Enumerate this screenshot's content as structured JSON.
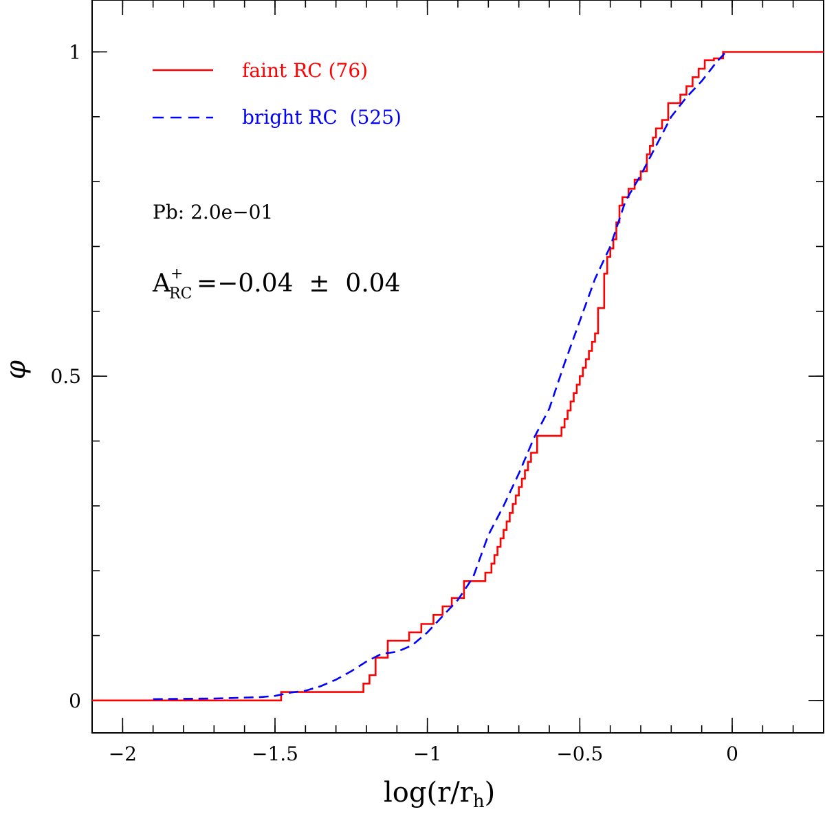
{
  "chart_data": {
    "type": "line",
    "xlabel_main": "log(r/r",
    "xlabel_sub": "h",
    "xlabel_close": ")",
    "ylabel": "φ",
    "xlim": [
      -2.1,
      0.3
    ],
    "ylim": [
      -0.05,
      1.08
    ],
    "xticks": [
      -2,
      -1.5,
      -1,
      -0.5,
      0
    ],
    "xtick_labels": [
      "−2",
      "−1.5",
      "−1",
      "−0.5",
      "0"
    ],
    "xminor": [
      -2.1,
      -2.0,
      -1.9,
      -1.8,
      -1.7,
      -1.6,
      -1.5,
      -1.4,
      -1.3,
      -1.2,
      -1.1,
      -1.0,
      -0.9,
      -0.8,
      -0.7,
      -0.6,
      -0.5,
      -0.4,
      -0.3,
      -0.2,
      -0.1,
      0.0,
      0.1,
      0.2,
      0.3
    ],
    "yticks": [
      0,
      0.5,
      1
    ],
    "ytick_labels": [
      "0",
      "0.5",
      "1"
    ],
    "yminor": [
      0,
      0.1,
      0.2,
      0.3,
      0.4,
      0.5,
      0.6,
      0.7,
      0.8,
      0.9,
      1.0
    ],
    "series": [
      {
        "name": "faint RC (76)",
        "color": "#ff0000",
        "style": "solid",
        "step": true,
        "x": [
          -2.1,
          -1.48,
          -1.21,
          -1.19,
          -1.17,
          -1.13,
          -1.06,
          -1.02,
          -0.98,
          -0.95,
          -0.92,
          -0.88,
          -0.81,
          -0.79,
          -0.78,
          -0.77,
          -0.76,
          -0.75,
          -0.74,
          -0.73,
          -0.72,
          -0.71,
          -0.7,
          -0.69,
          -0.68,
          -0.67,
          -0.66,
          -0.64,
          -0.56,
          -0.55,
          -0.54,
          -0.53,
          -0.52,
          -0.51,
          -0.5,
          -0.49,
          -0.48,
          -0.47,
          -0.46,
          -0.45,
          -0.44,
          -0.43,
          -0.42,
          -0.41,
          -0.4,
          -0.39,
          -0.38,
          -0.37,
          -0.36,
          -0.34,
          -0.32,
          -0.3,
          -0.28,
          -0.27,
          -0.26,
          -0.25,
          -0.23,
          -0.21,
          -0.17,
          -0.15,
          -0.13,
          -0.11,
          -0.09,
          -0.06,
          -0.03,
          0.3
        ],
        "y": [
          0.0,
          0.013,
          0.026,
          0.039,
          0.066,
          0.092,
          0.105,
          0.118,
          0.132,
          0.145,
          0.158,
          0.184,
          0.197,
          0.211,
          0.224,
          0.237,
          0.25,
          0.263,
          0.276,
          0.289,
          0.303,
          0.316,
          0.329,
          0.342,
          0.355,
          0.368,
          0.382,
          0.408,
          0.421,
          0.434,
          0.447,
          0.461,
          0.474,
          0.487,
          0.5,
          0.513,
          0.526,
          0.539,
          0.553,
          0.566,
          0.605,
          0.605,
          0.658,
          0.684,
          0.697,
          0.711,
          0.737,
          0.763,
          0.776,
          0.789,
          0.803,
          0.816,
          0.842,
          0.855,
          0.868,
          0.882,
          0.895,
          0.921,
          0.934,
          0.947,
          0.961,
          0.974,
          0.987,
          0.99,
          1.0,
          1.0
        ]
      },
      {
        "name": "bright RC  (525)",
        "color": "#0000ff",
        "style": "dashed",
        "step": false,
        "x": [
          -1.9,
          -1.7,
          -1.55,
          -1.5,
          -1.45,
          -1.4,
          -1.35,
          -1.3,
          -1.25,
          -1.2,
          -1.15,
          -1.1,
          -1.05,
          -1.0,
          -0.95,
          -0.9,
          -0.85,
          -0.8,
          -0.75,
          -0.7,
          -0.65,
          -0.6,
          -0.55,
          -0.5,
          -0.45,
          -0.4,
          -0.35,
          -0.3,
          -0.25,
          -0.2,
          -0.15,
          -0.1,
          -0.05,
          -0.02
        ],
        "y": [
          0.002,
          0.003,
          0.005,
          0.007,
          0.012,
          0.015,
          0.022,
          0.032,
          0.045,
          0.06,
          0.072,
          0.075,
          0.085,
          0.105,
          0.13,
          0.155,
          0.19,
          0.255,
          0.3,
          0.35,
          0.405,
          0.45,
          0.52,
          0.585,
          0.65,
          0.7,
          0.77,
          0.81,
          0.855,
          0.9,
          0.93,
          0.955,
          0.985,
          1.0
        ]
      }
    ],
    "annotations": {
      "pb": "Pb: 2.0e−01",
      "a_main": "A",
      "a_sup": "+",
      "a_sub": "RC",
      "a_value": "=−0.04  ±  0.04"
    },
    "legend_position": "top-left"
  }
}
